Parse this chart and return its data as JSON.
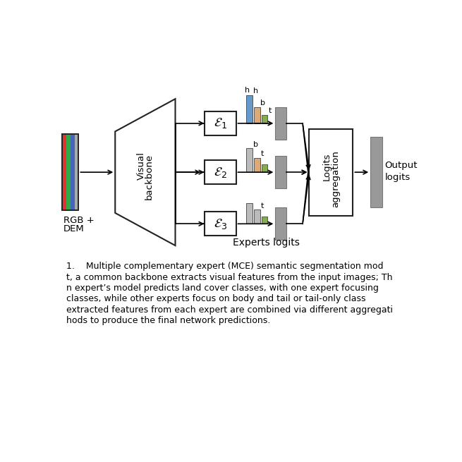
{
  "bg_color": "#ffffff",
  "rgb_stripe_colors": [
    "#dd3333",
    "#33aa44",
    "#4466bb",
    "#aaaaaa"
  ],
  "bar_colors": {
    "h": "#6699cc",
    "b_orange": "#ddaa77",
    "t": "#88aa55",
    "b_gray": "#bbbbbb"
  },
  "gray_block_color": "#999999",
  "box_ec": "#222222",
  "caption_lines": [
    "1.    Multiple complementary expert (MCE) semantic segmentation mod",
    "t, a common backbone extracts visual features from the input images; Th",
    "n expert’s model predicts land cover classes, with one expert focusing",
    "classes, while other experts focus on body and tail or tail-only class",
    "extracted features from each expert are combined via different aggregati",
    "hods to produce the final network predictions."
  ],
  "experts_logits_label": "Experts logits",
  "output_label_1": "Output",
  "output_label_2": "logits",
  "logits_line1": "Logits",
  "logits_line2": "aggregation",
  "visual_line1": "Visual",
  "visual_line2": "backbone",
  "rgb_line1": "RGB +",
  "rgb_line2": "DEM"
}
